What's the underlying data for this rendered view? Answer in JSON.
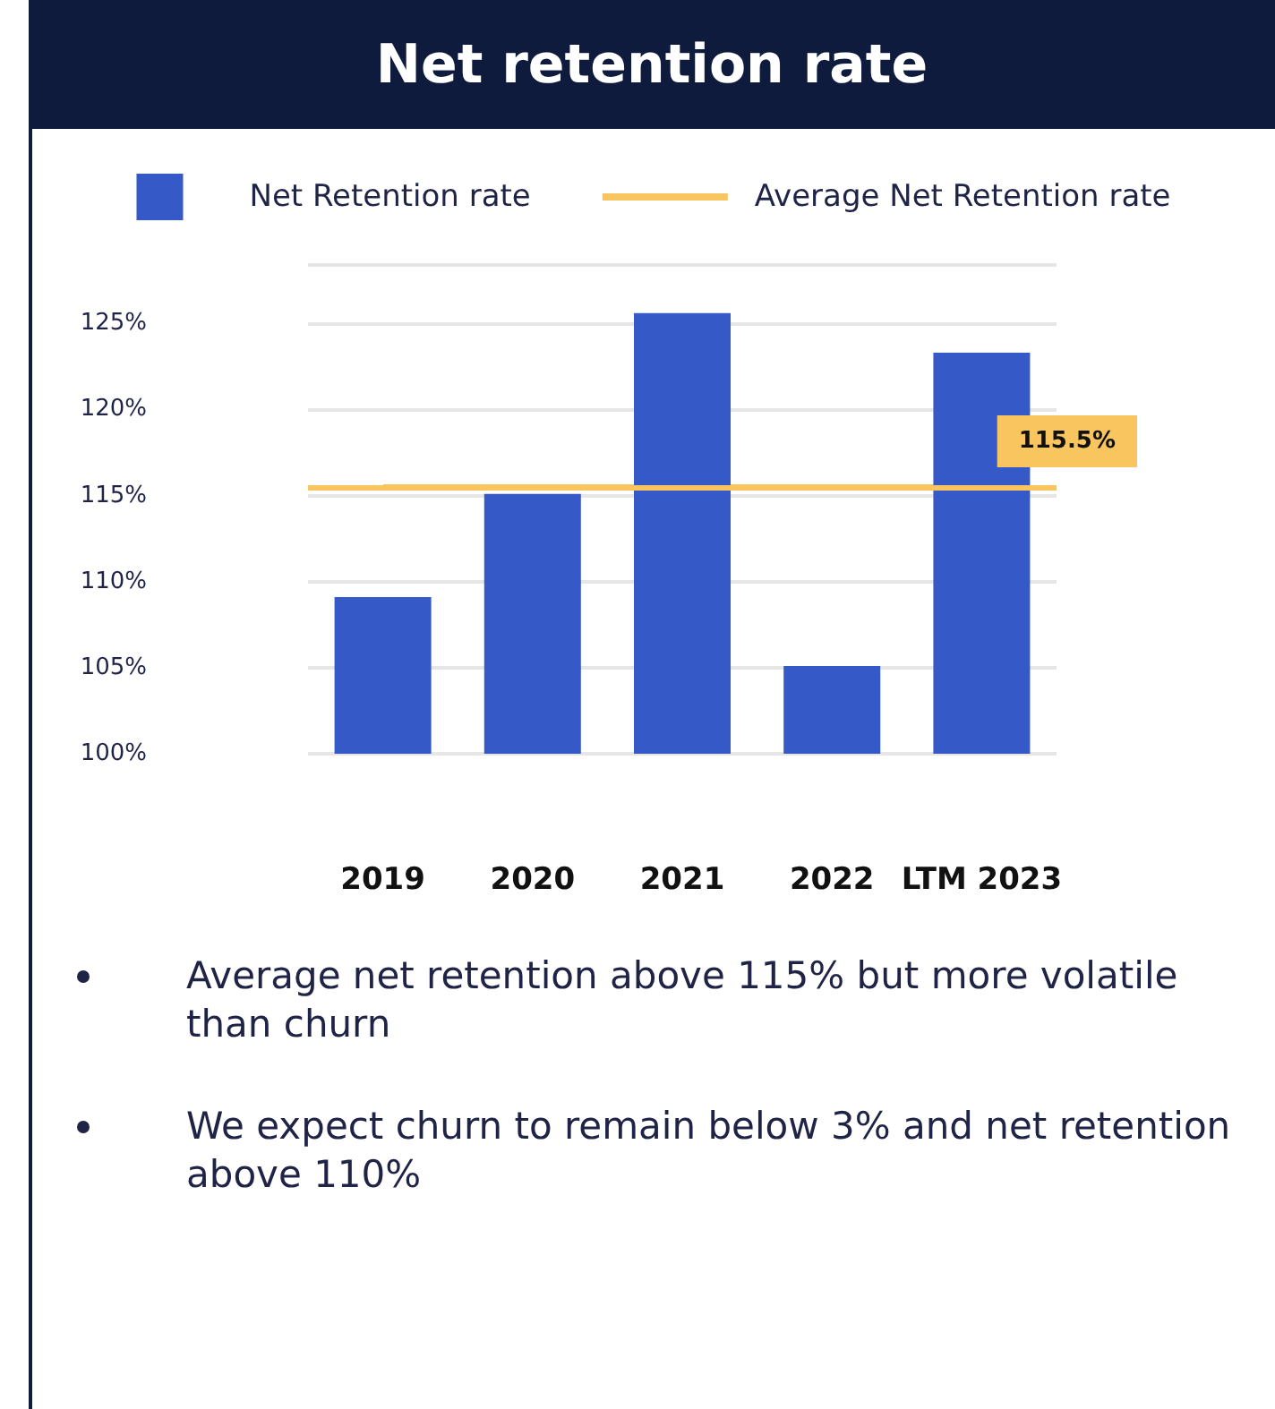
{
  "chart_data": {
    "type": "bar",
    "title": "Net retention rate",
    "categories": [
      "2019",
      "2020",
      "2021",
      "2022",
      "LTM 2023"
    ],
    "series": [
      {
        "name": "Net Retention rate",
        "color": "#3559c7",
        "values": [
          109.1,
          115.1,
          125.6,
          105.1,
          123.3
        ]
      },
      {
        "name": "Average Net Retention rate",
        "color": "#f9c55e",
        "type": "line",
        "values": [
          115.5,
          115.5,
          115.5,
          115.5,
          115.5
        ]
      }
    ],
    "ylim": [
      100,
      128.4
    ],
    "yticks": [
      {
        "value": 100,
        "label": "100%"
      },
      {
        "value": 105,
        "label": "105%"
      },
      {
        "value": 110,
        "label": "110%"
      },
      {
        "value": 115,
        "label": "115%"
      },
      {
        "value": 120,
        "label": "120%"
      },
      {
        "value": 125,
        "label": "125%"
      },
      {
        "value": 128.4,
        "label": null
      }
    ],
    "ref_lines": [
      {
        "axis": "y",
        "value": 115.5,
        "label": "115.5%",
        "color": "#f9c55e"
      }
    ],
    "annotations": [
      "Average net retention above 115% but more volatile than churn",
      "We expect churn to remain below 3% and net retention above 110%"
    ],
    "grid": "y",
    "legend": "top"
  }
}
